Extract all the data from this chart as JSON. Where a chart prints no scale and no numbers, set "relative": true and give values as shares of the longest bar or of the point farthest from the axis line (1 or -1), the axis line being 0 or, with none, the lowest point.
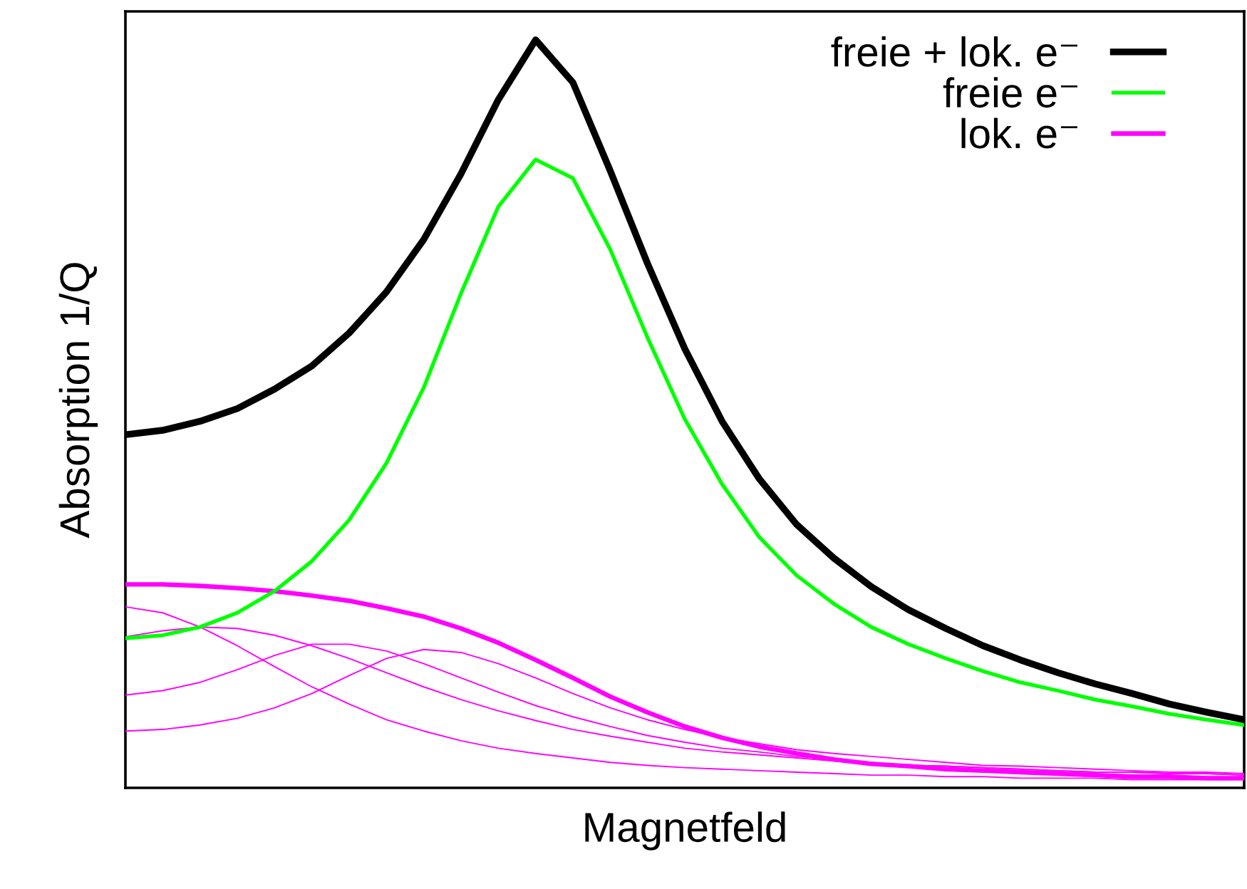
{
  "chart_data": {
    "type": "line",
    "relative": true,
    "xlabel": "Magnetfeld",
    "ylabel": "Absorption 1/Q",
    "tick_labels": false,
    "legend": "top right",
    "marker": "none",
    "line_style": "solid",
    "categories": [
      null,
      null,
      null,
      null,
      null,
      null,
      null,
      null,
      null,
      null,
      null,
      null,
      null,
      null,
      null,
      null,
      null,
      null,
      null,
      null,
      null,
      null,
      null,
      null,
      null,
      null,
      null,
      null,
      null,
      null,
      null
    ],
    "series": [
      {
        "name": "freie + lok. e⁻",
        "color": "#000000",
        "values": [
          0.472,
          0.478,
          0.49,
          0.507,
          0.533,
          0.564,
          0.608,
          0.663,
          0.733,
          0.821,
          0.92,
          1,
          0.943,
          0.825,
          0.701,
          0.587,
          0.49,
          0.413,
          0.352,
          0.307,
          0.269,
          0.238,
          0.213,
          0.19,
          0.171,
          0.154,
          0.139,
          0.126,
          0.112,
          0.101,
          0.091
        ]
      },
      {
        "name": "freie e⁻",
        "color": "#00ff00",
        "values": [
          0.2,
          0.204,
          0.215,
          0.234,
          0.263,
          0.303,
          0.358,
          0.434,
          0.535,
          0.661,
          0.777,
          0.84,
          0.815,
          0.72,
          0.602,
          0.493,
          0.406,
          0.335,
          0.284,
          0.246,
          0.215,
          0.192,
          0.173,
          0.156,
          0.141,
          0.13,
          0.118,
          0.109,
          0.099,
          0.091,
          0.084
        ]
      },
      {
        "name": "lok. e⁻",
        "color": "#ff00ff",
        "values": [
          0.272,
          0.272,
          0.27,
          0.267,
          0.263,
          0.257,
          0.25,
          0.24,
          0.229,
          0.213,
          0.194,
          0.171,
          0.147,
          0.122,
          0.101,
          0.082,
          0.067,
          0.055,
          0.046,
          0.038,
          0.032,
          0.029,
          0.025,
          0.023,
          0.021,
          0.019,
          0.017,
          0.015,
          0.015,
          0.013,
          0.013
        ]
      },
      {
        "color": "#ff00ff",
        "values": [
          0.242,
          0.234,
          0.215,
          0.19,
          0.162,
          0.135,
          0.112,
          0.091,
          0.076,
          0.063,
          0.053,
          0.046,
          0.04,
          0.034,
          0.03,
          0.027,
          0.025,
          0.023,
          0.021,
          0.019,
          0.017,
          0.017,
          0.015,
          0.015,
          0.013,
          0.013,
          0.013,
          0.011,
          0.011,
          0.011,
          0.011
        ]
      },
      {
        "color": "#ff00ff",
        "values": [
          0.202,
          0.21,
          0.215,
          0.213,
          0.204,
          0.19,
          0.173,
          0.154,
          0.135,
          0.118,
          0.103,
          0.09,
          0.078,
          0.069,
          0.061,
          0.053,
          0.048,
          0.044,
          0.04,
          0.036,
          0.032,
          0.03,
          0.029,
          0.027,
          0.025,
          0.023,
          0.021,
          0.021,
          0.019,
          0.019,
          0.017
        ]
      },
      {
        "color": "#ff00ff",
        "values": [
          0.124,
          0.13,
          0.141,
          0.158,
          0.177,
          0.192,
          0.192,
          0.183,
          0.166,
          0.147,
          0.128,
          0.11,
          0.095,
          0.082,
          0.07,
          0.061,
          0.053,
          0.048,
          0.042,
          0.038,
          0.034,
          0.03,
          0.029,
          0.027,
          0.025,
          0.023,
          0.021,
          0.021,
          0.019,
          0.019,
          0.017
        ]
      },
      {
        "color": "#ff00ff",
        "values": [
          0.076,
          0.078,
          0.084,
          0.093,
          0.107,
          0.126,
          0.15,
          0.173,
          0.185,
          0.181,
          0.166,
          0.147,
          0.126,
          0.107,
          0.091,
          0.078,
          0.067,
          0.059,
          0.051,
          0.046,
          0.042,
          0.038,
          0.034,
          0.03,
          0.029,
          0.027,
          0.025,
          0.023,
          0.021,
          0.021,
          0.019
        ]
      }
    ]
  }
}
